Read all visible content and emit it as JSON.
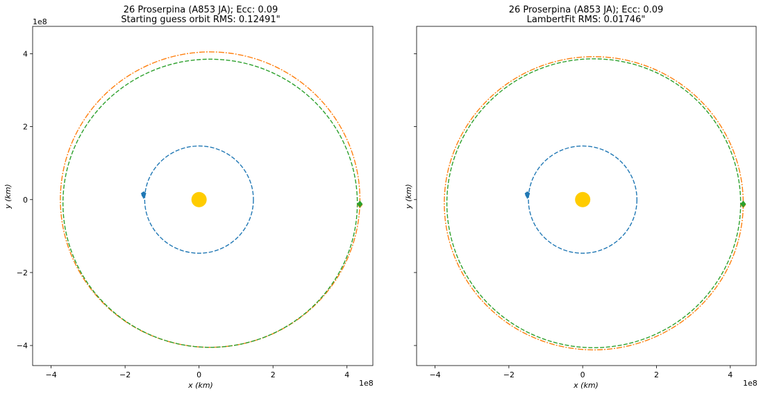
{
  "chart_data": [
    {
      "type": "scatter",
      "title_line1": "26 Proserpina (A853 JA); Ecc: 0.09",
      "title_line2": "Starting guess orbit RMS: 0.12491\"",
      "xlabel": "x (km)",
      "ylabel": "y (km)",
      "axis_scale_label": "1e8",
      "xlim": [
        -4.5,
        4.7
      ],
      "ylim": [
        -4.55,
        4.75
      ],
      "xticks": [
        "−4",
        "−2",
        "0",
        "2",
        "4"
      ],
      "xtick_values": [
        -4,
        -2,
        0,
        2,
        4
      ],
      "yticks": [
        "−4",
        "−2",
        "0",
        "2",
        "4"
      ],
      "ytick_values": [
        -4,
        -2,
        0,
        2,
        4
      ],
      "show_ytick_labels": true,
      "grid": false,
      "sun": {
        "x": 0,
        "y": 0,
        "color": "#ffcc00"
      },
      "orbits": [
        {
          "cx": 0.0,
          "cy": 0.0,
          "rx": 1.47,
          "ry": 1.47,
          "color": "#1f77b4",
          "dash": "dashed"
        },
        {
          "cx": 0.3,
          "cy": 0.0,
          "rx": 4.05,
          "ry": 4.05,
          "color": "#ff7f0e",
          "dash": "dashdot"
        },
        {
          "cx": 0.3,
          "cy": -0.1,
          "rx": 3.98,
          "ry": 3.95,
          "color": "#2ca02c",
          "dash": "dashed"
        }
      ],
      "markers": [
        {
          "x": -1.5,
          "y": 0.15,
          "color": "#1f77b4",
          "shape": "pentagon"
        },
        {
          "x": -1.5,
          "y": 0.09,
          "color": "#1f77b4",
          "shape": "triangle"
        },
        {
          "x": 4.35,
          "y": -0.14,
          "color": "#ff7f0e",
          "shape": "diamond"
        },
        {
          "x": 4.35,
          "y": -0.12,
          "color": "#2ca02c",
          "shape": "diamond"
        }
      ]
    },
    {
      "type": "scatter",
      "title_line1": "26 Proserpina (A853 JA); Ecc: 0.09",
      "title_line2": "LambertFit RMS: 0.01746\"",
      "xlabel": "x (km)",
      "ylabel": "y (km)",
      "axis_scale_label": "1e8",
      "xlim": [
        -4.5,
        4.7
      ],
      "ylim": [
        -4.55,
        4.75
      ],
      "xticks": [
        "−4",
        "−2",
        "0",
        "2",
        "4"
      ],
      "xtick_values": [
        -4,
        -2,
        0,
        2,
        4
      ],
      "yticks": [
        "",
        "",
        "",
        "",
        ""
      ],
      "ytick_values": [
        -4,
        -2,
        0,
        2,
        4
      ],
      "show_ytick_labels": false,
      "grid": false,
      "sun": {
        "x": 0,
        "y": 0,
        "color": "#ffcc00"
      },
      "orbits": [
        {
          "cx": 0.0,
          "cy": 0.0,
          "rx": 1.47,
          "ry": 1.47,
          "color": "#1f77b4",
          "dash": "dashed"
        },
        {
          "cx": 0.3,
          "cy": -0.1,
          "rx": 4.05,
          "ry": 4.02,
          "color": "#ff7f0e",
          "dash": "dashdot"
        },
        {
          "cx": 0.3,
          "cy": -0.1,
          "rx": 3.98,
          "ry": 3.96,
          "color": "#2ca02c",
          "dash": "dashed"
        }
      ],
      "markers": [
        {
          "x": -1.5,
          "y": 0.15,
          "color": "#1f77b4",
          "shape": "pentagon"
        },
        {
          "x": -1.5,
          "y": 0.09,
          "color": "#1f77b4",
          "shape": "triangle"
        },
        {
          "x": 4.35,
          "y": -0.14,
          "color": "#ff7f0e",
          "shape": "diamond"
        },
        {
          "x": 4.35,
          "y": -0.12,
          "color": "#2ca02c",
          "shape": "diamond"
        }
      ]
    }
  ]
}
